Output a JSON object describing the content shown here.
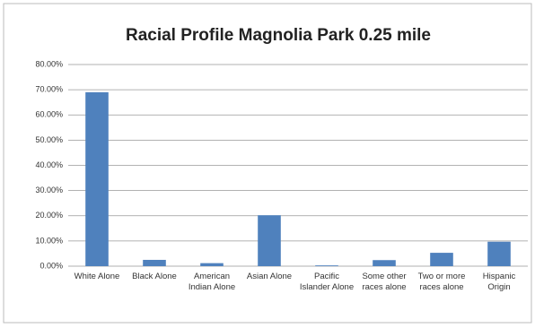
{
  "chart_data": {
    "type": "bar",
    "title": "Racial Profile Magnolia Park 0.25 mile",
    "categories": [
      "White Alone",
      "Black Alone",
      "American Indian Alone",
      "Asian Alone",
      "Pacific Islander Alone",
      "Some other races alone",
      "Two or more races alone",
      "Hispanic Origin"
    ],
    "values": [
      69,
      2.5,
      1.2,
      20.2,
      0.3,
      2.4,
      5.3,
      9.7
    ],
    "color": "#4f81bd",
    "ylim": [
      0,
      80
    ],
    "yticks": [
      {
        "value": 0,
        "label": "0.00%"
      },
      {
        "value": 10,
        "label": "10.00%"
      },
      {
        "value": 20,
        "label": "20.00%"
      },
      {
        "value": 30,
        "label": "30.00%"
      },
      {
        "value": 40,
        "label": "40.00%"
      },
      {
        "value": 50,
        "label": "50.00%"
      },
      {
        "value": 60,
        "label": "60.00%"
      },
      {
        "value": 70,
        "label": "70.00%"
      },
      {
        "value": 80,
        "label": "80.00%"
      }
    ],
    "grid": true
  }
}
